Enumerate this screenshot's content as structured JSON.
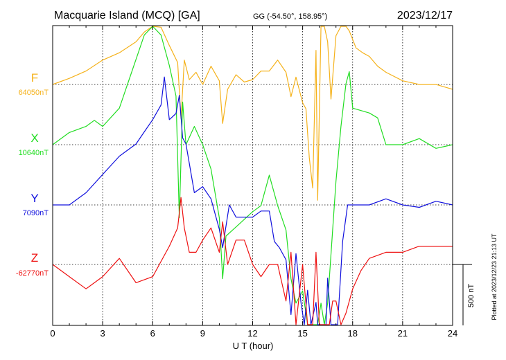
{
  "header": {
    "title": "Macquarie Island (MCQ)  [GA]",
    "coords": "GG (-54.50°, 158.95°)",
    "date": "2023/12/17"
  },
  "footer": {
    "plotted_note": "Plotted at 2023/12/23 21:13 UT"
  },
  "chart_data": {
    "type": "line",
    "xlabel": "U T (hour)",
    "xlim": [
      0,
      24
    ],
    "x_ticks": [
      0,
      3,
      6,
      9,
      12,
      15,
      18,
      21,
      24
    ],
    "scale_bar": {
      "label": "500 nT",
      "value_nT": 500
    },
    "grid": true,
    "colors": {
      "F": "#f5b21b",
      "X": "#22dd22",
      "Y": "#1010dd",
      "Z": "#ee1111"
    },
    "series": [
      {
        "name": "F",
        "baseline_label": "64050nT",
        "baseline_nT": 64050,
        "x": [
          0,
          1,
          2,
          3,
          4,
          5,
          5.5,
          6,
          6.5,
          7,
          7.5,
          7.7,
          7.9,
          8.2,
          8.6,
          9,
          9.5,
          10,
          10.2,
          10.5,
          11,
          11.5,
          12,
          12.5,
          13,
          13.5,
          14,
          14.3,
          14.6,
          15,
          15.2,
          15.4,
          15.6,
          15.8,
          15.9,
          16.1,
          16.3,
          16.5,
          16.7,
          17,
          17.3,
          17.6,
          17.8,
          18.2,
          18.6,
          19,
          19.5,
          20,
          21,
          22,
          23,
          24
        ],
        "y": [
          0,
          50,
          110,
          200,
          260,
          350,
          430,
          520,
          470,
          320,
          180,
          -280,
          200,
          40,
          100,
          0,
          150,
          30,
          -320,
          -40,
          80,
          20,
          40,
          110,
          110,
          200,
          100,
          -100,
          60,
          -150,
          -200,
          -600,
          -850,
          280,
          -950,
          900,
          1250,
          350,
          -120,
          400,
          600,
          650,
          440,
          300,
          260,
          230,
          150,
          100,
          30,
          0,
          0,
          -40
        ]
      },
      {
        "name": "X",
        "baseline_label": "10640nT",
        "baseline_nT": 10640,
        "x": [
          0,
          1,
          2,
          2.5,
          3,
          4,
          4.5,
          5,
          5.5,
          6,
          6.5,
          7,
          7.4,
          7.6,
          7.8,
          8,
          8.5,
          9,
          9.5,
          10,
          10.2,
          10.4,
          10.8,
          11.2,
          11.6,
          12,
          12.5,
          13,
          13.5,
          14,
          14.3,
          14.6,
          15,
          15.3,
          15.6,
          15.9,
          16.1,
          16.3,
          16.5,
          16.7,
          17,
          17.3,
          17.6,
          17.8,
          18,
          18.5,
          19,
          19.5,
          20,
          21,
          22,
          23,
          24
        ],
        "y": [
          0,
          100,
          150,
          200,
          150,
          300,
          500,
          700,
          900,
          1000,
          900,
          650,
          400,
          -600,
          350,
          0,
          150,
          0,
          -200,
          -600,
          -1100,
          -750,
          -700,
          -650,
          -600,
          -550,
          -500,
          -250,
          -500,
          -700,
          -1100,
          -1300,
          -1200,
          -1500,
          -1600,
          -1700,
          -1300,
          -1500,
          -1300,
          -900,
          -300,
          150,
          500,
          600,
          300,
          280,
          260,
          220,
          0,
          0,
          50,
          -30,
          0
        ]
      },
      {
        "name": "Y",
        "baseline_label": "7090nT",
        "baseline_nT": 7090,
        "x": [
          0,
          1,
          2,
          3,
          4,
          5,
          5.5,
          6,
          6.5,
          6.7,
          7,
          7.4,
          7.6,
          7.8,
          8,
          8.5,
          9,
          9.5,
          10,
          10.2,
          10.6,
          11,
          11.5,
          12,
          12.5,
          13,
          13.3,
          13.6,
          14,
          14.3,
          14.6,
          14.9,
          15.1,
          15.3,
          15.5,
          15.8,
          15.9,
          16.1,
          16.2,
          16.3,
          16.4,
          16.5,
          16.7,
          16.9,
          17.1,
          17.4,
          17.7,
          18,
          18.5,
          19,
          20,
          21,
          22,
          23,
          24
        ],
        "y": [
          0,
          0,
          100,
          250,
          400,
          500,
          600,
          700,
          820,
          1050,
          700,
          750,
          900,
          550,
          500,
          100,
          150,
          50,
          -200,
          -350,
          0,
          -100,
          -100,
          -100,
          -50,
          -50,
          -300,
          -350,
          -450,
          -900,
          -400,
          -800,
          -1200,
          -700,
          -1300,
          -800,
          -1700,
          -1000,
          -2100,
          -1000,
          -2000,
          -600,
          -1000,
          -1500,
          -1400,
          -300,
          0,
          0,
          0,
          0,
          50,
          0,
          -20,
          30,
          0
        ]
      },
      {
        "name": "Z",
        "baseline_label": "-62770nT",
        "baseline_nT": -62770,
        "x": [
          0,
          1,
          2,
          3,
          4,
          5,
          6,
          7,
          7.5,
          7.7,
          7.9,
          8.2,
          8.6,
          9,
          9.5,
          10,
          10.2,
          10.5,
          11,
          11.5,
          12,
          12.5,
          13,
          13.5,
          14,
          14.3,
          14.6,
          15,
          15.3,
          15.6,
          15.8,
          16,
          16.2,
          16.4,
          16.6,
          16.8,
          17,
          17.3,
          17.6,
          18,
          18.5,
          19,
          20,
          21,
          22,
          23,
          24
        ],
        "y": [
          0,
          -100,
          -200,
          -100,
          50,
          -150,
          -100,
          150,
          300,
          550,
          300,
          100,
          100,
          200,
          300,
          100,
          350,
          0,
          200,
          200,
          0,
          -100,
          0,
          0,
          -300,
          100,
          -500,
          0,
          -600,
          -1000,
          100,
          -700,
          -1300,
          -900,
          -500,
          -300,
          -300,
          -500,
          -400,
          -200,
          -50,
          50,
          100,
          100,
          150,
          150,
          150
        ]
      }
    ]
  }
}
